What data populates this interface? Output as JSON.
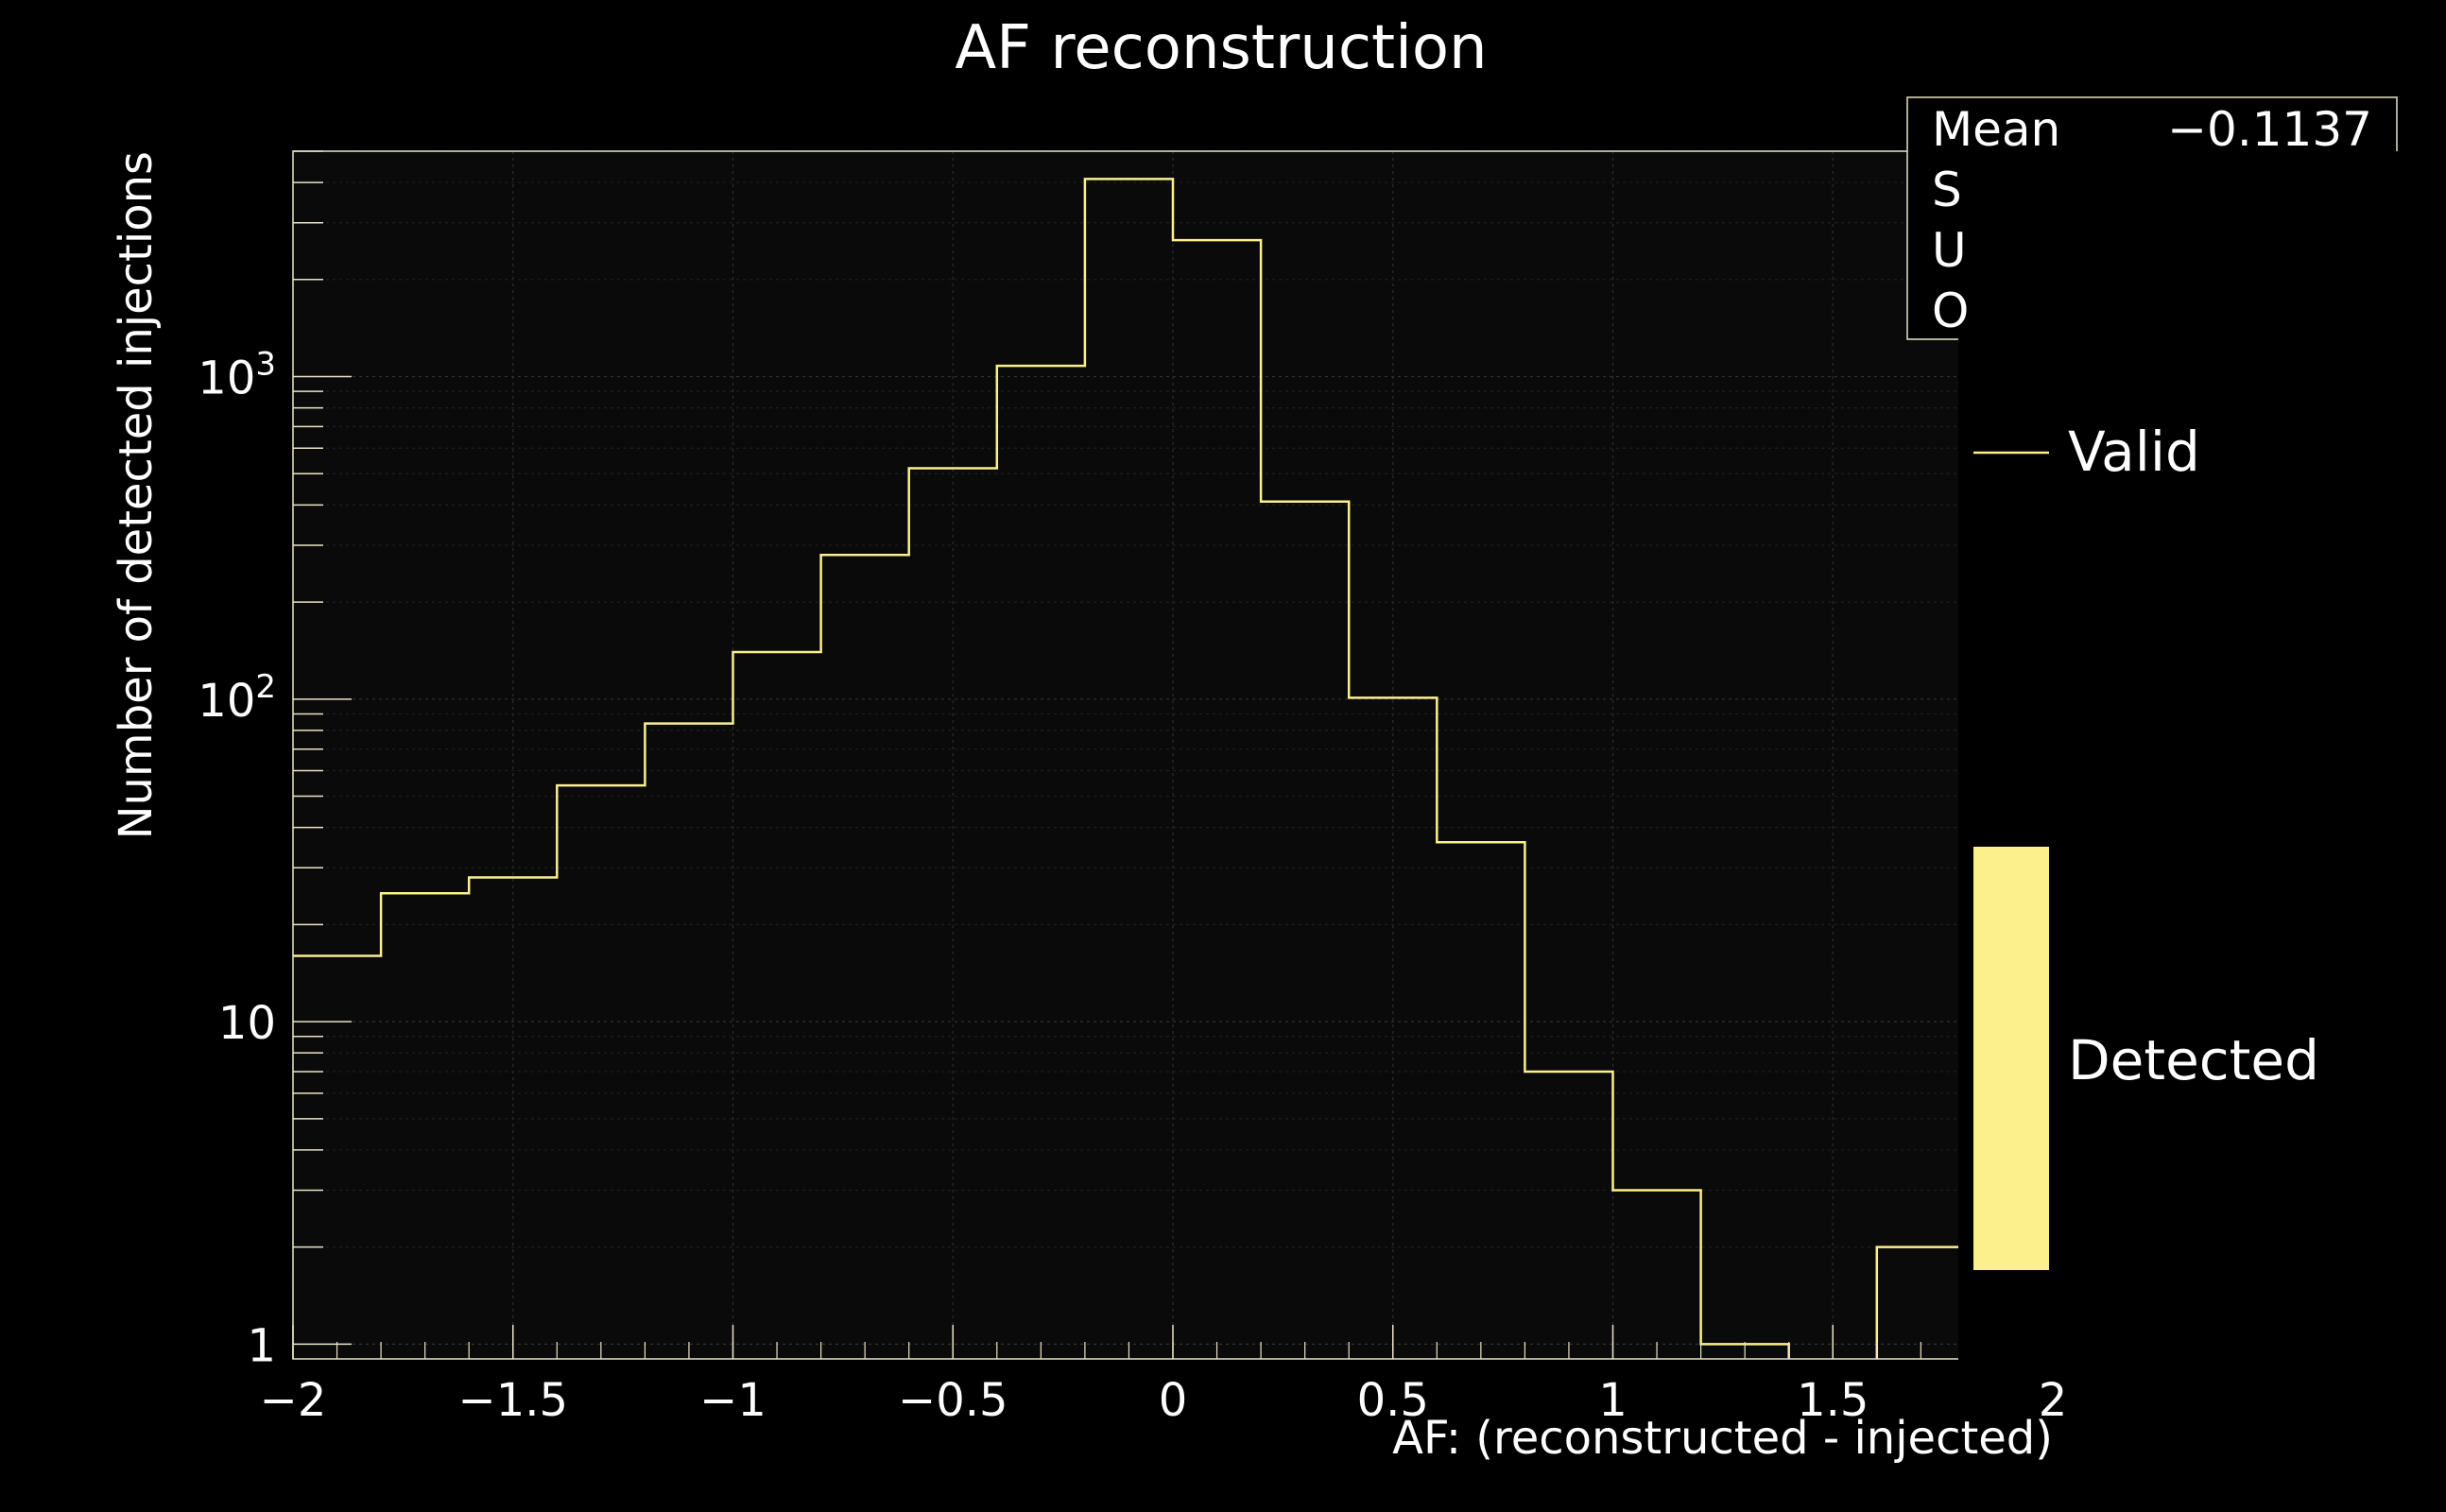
{
  "chart_data": {
    "type": "histogram",
    "title": "AF  reconstruction",
    "xlabel": "AF: (reconstructed - injected)",
    "ylabel": "Number of detected injections",
    "xlim": [
      -2,
      2
    ],
    "ylim": [
      0.9,
      5000
    ],
    "y_scale": "log",
    "grid": true,
    "x_ticks": [
      {
        "value": -2,
        "label": "−2"
      },
      {
        "value": -1.5,
        "label": "−1.5"
      },
      {
        "value": -1,
        "label": "−1"
      },
      {
        "value": -0.5,
        "label": "−0.5"
      },
      {
        "value": 0,
        "label": "0"
      },
      {
        "value": 0.5,
        "label": "0.5"
      },
      {
        "value": 1,
        "label": "1"
      },
      {
        "value": 1.5,
        "label": "1.5"
      },
      {
        "value": 2,
        "label": "2"
      }
    ],
    "y_ticks": [
      {
        "value": 1,
        "base": "1",
        "exp": ""
      },
      {
        "value": 10,
        "base": "10",
        "exp": ""
      },
      {
        "value": 100,
        "base": "10",
        "exp": "2"
      },
      {
        "value": 1000,
        "base": "10",
        "exp": "3"
      }
    ],
    "bin_edges": [
      -2.0,
      -1.8,
      -1.6,
      -1.4,
      -1.2,
      -1.0,
      -0.8,
      -0.6,
      -0.4,
      -0.2,
      0.0,
      0.2,
      0.4,
      0.6,
      0.8,
      1.0,
      1.2,
      1.4,
      1.6,
      1.8
    ],
    "series": [
      {
        "name": "Valid",
        "color": "#fbf08c",
        "values": [
          16,
          25,
          28,
          54,
          84,
          140,
          280,
          520,
          1080,
          4100,
          2650,
          410,
          101,
          36,
          7,
          3,
          1,
          0,
          2
        ]
      }
    ],
    "legend": {
      "placement": "right",
      "entries": [
        {
          "label": "Valid",
          "style": "line",
          "color": "#fbf08c"
        },
        {
          "label": "Detected",
          "style": "box",
          "color": "#fbf08c"
        }
      ]
    },
    "stats_box": {
      "placement": "top-right",
      "entries": [
        {
          "label": "Mean",
          "value": "−0.1137"
        },
        {
          "label": "S",
          "value": ""
        },
        {
          "label": "U",
          "value": ""
        },
        {
          "label": "O",
          "value": ""
        }
      ]
    }
  }
}
